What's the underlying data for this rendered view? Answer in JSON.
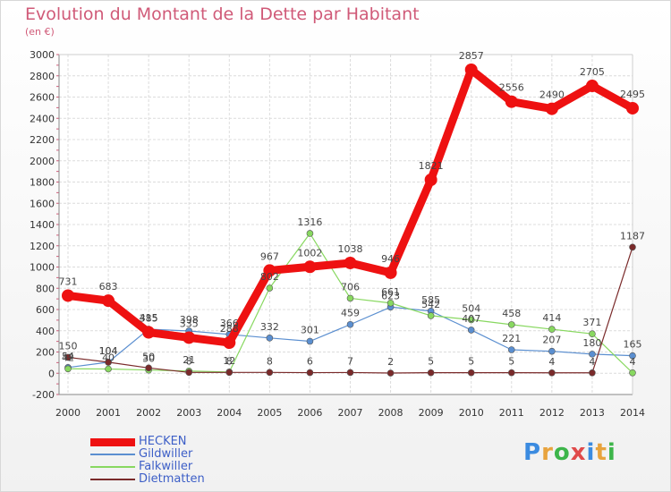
{
  "header": {
    "title": "Evolution du Montant de la Dette par Habitant",
    "subtitle": "(en €)"
  },
  "logo": {
    "text": "Proxiti",
    "colors": [
      "#3b8be0",
      "#e8a33d",
      "#3db54a",
      "#e04a4a",
      "#3b8be0",
      "#e8a33d",
      "#3db54a"
    ]
  },
  "chart_data": {
    "type": "line",
    "title": "Evolution du Montant de la Dette par Habitant",
    "subtitle": "(en €)",
    "xlabel": "",
    "ylabel": "",
    "x": [
      "2000",
      "2001",
      "2002",
      "2003",
      "2004",
      "2005",
      "2006",
      "2007",
      "2008",
      "2009",
      "2010",
      "2011",
      "2012",
      "2013",
      "2014"
    ],
    "ylim": [
      -200,
      3000
    ],
    "yticks": [
      -200,
      0,
      200,
      400,
      600,
      800,
      1000,
      1200,
      1400,
      1600,
      1800,
      2000,
      2200,
      2400,
      2600,
      2800,
      3000
    ],
    "grid": true,
    "legend_position": "bottom-left",
    "series": [
      {
        "name": "HECKEN",
        "color": "#ee1111",
        "values": [
          731,
          683,
          385,
          335,
          288,
          967,
          1002,
          1038,
          946,
          1821,
          2857,
          2556,
          2490,
          2705,
          2495
        ],
        "labels": [
          "731",
          "683",
          "385",
          "335",
          "288",
          "967",
          "1002",
          "1038",
          "946",
          "1821",
          "2857",
          "2556",
          "2490",
          "2705",
          "2495"
        ]
      },
      {
        "name": "Gildwiller",
        "color": "#5b8fd0",
        "values": [
          54,
          104,
          415,
          398,
          366,
          332,
          301,
          459,
          623,
          585,
          407,
          221,
          207,
          180,
          165
        ],
        "labels": [
          "54",
          "104",
          "415",
          "398",
          "366",
          "332",
          "301",
          "459",
          "623",
          "585",
          "407",
          "221",
          "207",
          "180",
          "165"
        ]
      },
      {
        "name": "Falkwiller",
        "color": "#88d860",
        "values": [
          42,
          40,
          30,
          21,
          12,
          802,
          1316,
          706,
          661,
          542,
          504,
          458,
          414,
          371,
          4
        ],
        "labels": [
          "42",
          "40",
          "30",
          "21",
          "12",
          "802",
          "1316",
          "706",
          "661",
          "542",
          "504",
          "458",
          "414",
          "371",
          "4"
        ]
      },
      {
        "name": "Dietmatten",
        "color": "#7a2a2a",
        "values": [
          150,
          104,
          50,
          8,
          8,
          8,
          6,
          7,
          2,
          5,
          5,
          5,
          4,
          4,
          1187
        ],
        "labels": [
          "150",
          "104",
          "50",
          "8",
          "8",
          "8",
          "6",
          "7",
          "2",
          "5",
          "5",
          "5",
          "4",
          "4",
          "1187"
        ]
      }
    ]
  }
}
